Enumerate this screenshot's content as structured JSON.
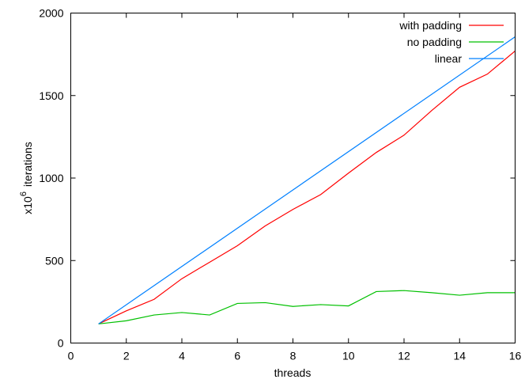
{
  "chart_data": {
    "type": "line",
    "xlabel": "threads",
    "ylabel_prefix": "x10",
    "ylabel_exponent": "6",
    "ylabel_suffix": "iterations",
    "xlim": [
      0,
      16
    ],
    "ylim": [
      0,
      2000
    ],
    "xticks": [
      0,
      2,
      4,
      6,
      8,
      10,
      12,
      14,
      16
    ],
    "yticks": [
      0,
      500,
      1000,
      1500,
      2000
    ],
    "grid": false,
    "legend": "top-right",
    "series": [
      {
        "name": "with padding",
        "color": "#ff0000",
        "x": [
          1,
          2,
          3,
          4,
          5,
          6,
          7,
          8,
          9,
          10,
          11,
          12,
          13,
          14,
          15,
          16
        ],
        "values": [
          116,
          195,
          265,
          390,
          490,
          590,
          710,
          810,
          900,
          1030,
          1155,
          1260,
          1410,
          1550,
          1630,
          1770
        ]
      },
      {
        "name": "no padding",
        "color": "#00c000",
        "x": [
          1,
          2,
          3,
          4,
          5,
          6,
          7,
          8,
          9,
          10,
          11,
          12,
          13,
          14,
          15,
          16
        ],
        "values": [
          116,
          135,
          170,
          185,
          170,
          240,
          245,
          222,
          233,
          225,
          312,
          318,
          305,
          290,
          305,
          305
        ]
      },
      {
        "name": "linear",
        "color": "#0080ff",
        "x": [
          1,
          16
        ],
        "values": [
          116,
          1856
        ]
      }
    ]
  }
}
